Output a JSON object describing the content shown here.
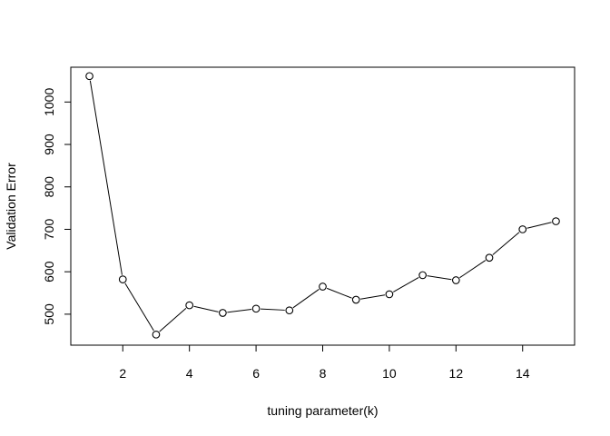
{
  "chart_data": {
    "type": "line",
    "title": "",
    "xlabel": "tuning parameter(k)",
    "ylabel": "Validation Error",
    "xlim": [
      0.44,
      15.56
    ],
    "ylim": [
      427,
      1082
    ],
    "xticks": [
      2,
      4,
      6,
      8,
      10,
      12,
      14
    ],
    "yticks": [
      500,
      600,
      700,
      800,
      900,
      1000
    ],
    "grid": false,
    "legend": "none",
    "marker": "open-circle",
    "line_color": "#000000",
    "series": [
      {
        "x": [
          1,
          2,
          3,
          4,
          5,
          6,
          7,
          8,
          9,
          10,
          11,
          12,
          13,
          14,
          15
        ],
        "values": [
          1061,
          582,
          452,
          521,
          503,
          513,
          509,
          565,
          534,
          547,
          592,
          580,
          633,
          700,
          719
        ]
      }
    ]
  }
}
